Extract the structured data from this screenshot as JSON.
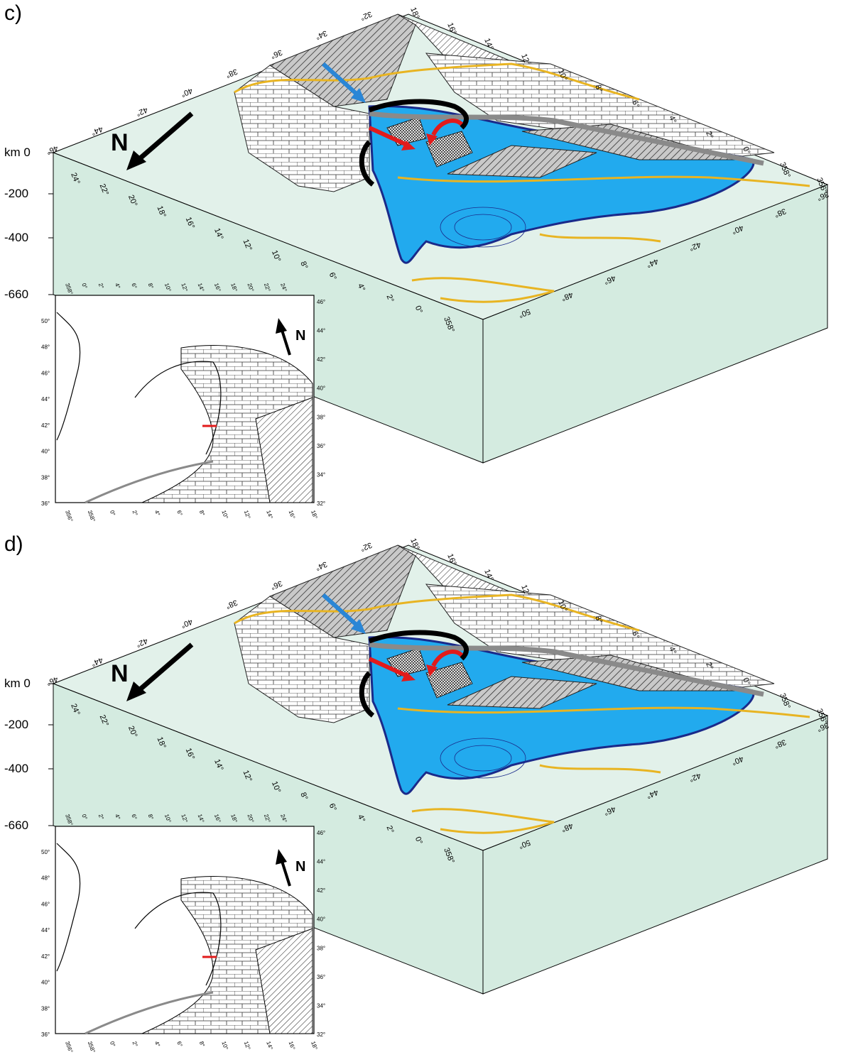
{
  "panels": [
    {
      "label": "c)",
      "depths": [
        "km 0",
        "-200",
        "-400",
        "-660"
      ],
      "north": "N",
      "inset_north": "N",
      "back_lon_ticks": [
        "18°",
        "16°",
        "14°",
        "12°",
        "10°",
        "8°",
        "6°",
        "4°",
        "2°",
        "0°",
        "358°",
        "356°"
      ],
      "back_lat_ticks": [
        "32°",
        "34°",
        "36°",
        "38°",
        "40°",
        "42°",
        "44°",
        "46°"
      ],
      "front_lon_ticks": [
        "24°",
        "22°",
        "20°",
        "18°",
        "16°",
        "14°",
        "12°",
        "10°",
        "8°",
        "6°",
        "4°",
        "2°",
        "0°",
        "358°"
      ],
      "right_lat_ticks": [
        "36°",
        "38°",
        "40°",
        "42°",
        "44°",
        "46°",
        "48°",
        "50°"
      ],
      "inset_left_ticks": [
        "50°",
        "48°",
        "46°",
        "44°",
        "42°",
        "40°",
        "38°",
        "36°"
      ],
      "inset_right_ticks": [
        "46°",
        "44°",
        "42°",
        "40°",
        "38°",
        "36°",
        "34°",
        "32°"
      ],
      "inset_bottom_ticks": [
        "356°",
        "358°",
        "0°",
        "2°",
        "4°",
        "6°",
        "8°",
        "10°",
        "12°",
        "14°",
        "16°",
        "18°"
      ],
      "inset_top_ticks": [
        "358°",
        "0°",
        "2°",
        "4°",
        "6°",
        "8°",
        "10°",
        "12°",
        "14°",
        "16°",
        "18°",
        "20°",
        "22°",
        "24°"
      ]
    },
    {
      "label": "d)",
      "depths": [
        "km 0",
        "-200",
        "-400",
        "-660"
      ],
      "north": "N",
      "inset_north": "N",
      "back_lon_ticks": [
        "18°",
        "16°",
        "14°",
        "12°",
        "10°",
        "8°",
        "6°",
        "4°",
        "2°",
        "0°",
        "358°",
        "356°"
      ],
      "back_lat_ticks": [
        "32°",
        "34°",
        "36°",
        "38°",
        "40°",
        "42°",
        "44°",
        "46°"
      ],
      "front_lon_ticks": [
        "24°",
        "22°",
        "20°",
        "18°",
        "16°",
        "14°",
        "12°",
        "10°",
        "8°",
        "6°",
        "4°",
        "2°",
        "0°",
        "358°"
      ],
      "right_lat_ticks": [
        "36°",
        "38°",
        "40°",
        "42°",
        "44°",
        "46°",
        "48°",
        "50°"
      ],
      "inset_left_ticks": [
        "50°",
        "48°",
        "46°",
        "44°",
        "42°",
        "40°",
        "38°",
        "36°"
      ],
      "inset_right_ticks": [
        "46°",
        "44°",
        "42°",
        "40°",
        "38°",
        "36°",
        "34°",
        "32°"
      ],
      "inset_bottom_ticks": [
        "356°",
        "358°",
        "0°",
        "2°",
        "4°",
        "6°",
        "8°",
        "10°",
        "12°",
        "14°",
        "16°",
        "18°"
      ],
      "inset_top_ticks": [
        "358°",
        "0°",
        "2°",
        "4°",
        "6°",
        "8°",
        "10°",
        "12°",
        "14°",
        "16°",
        "18°",
        "20°",
        "22°",
        "24°"
      ]
    }
  ],
  "colors": {
    "box_face": "#d4ebe0",
    "box_top": "#e2f1ea",
    "slab": "#22aaee",
    "slab_dark": "#2e6fc4",
    "slab_edge": "#1a2a8a",
    "coast": "#e8b422",
    "plate_hatch": "#333333",
    "trench_gray": "#8a8a8a",
    "arrow_red": "#e21b1b",
    "arrow_blue": "#2a86d6"
  }
}
